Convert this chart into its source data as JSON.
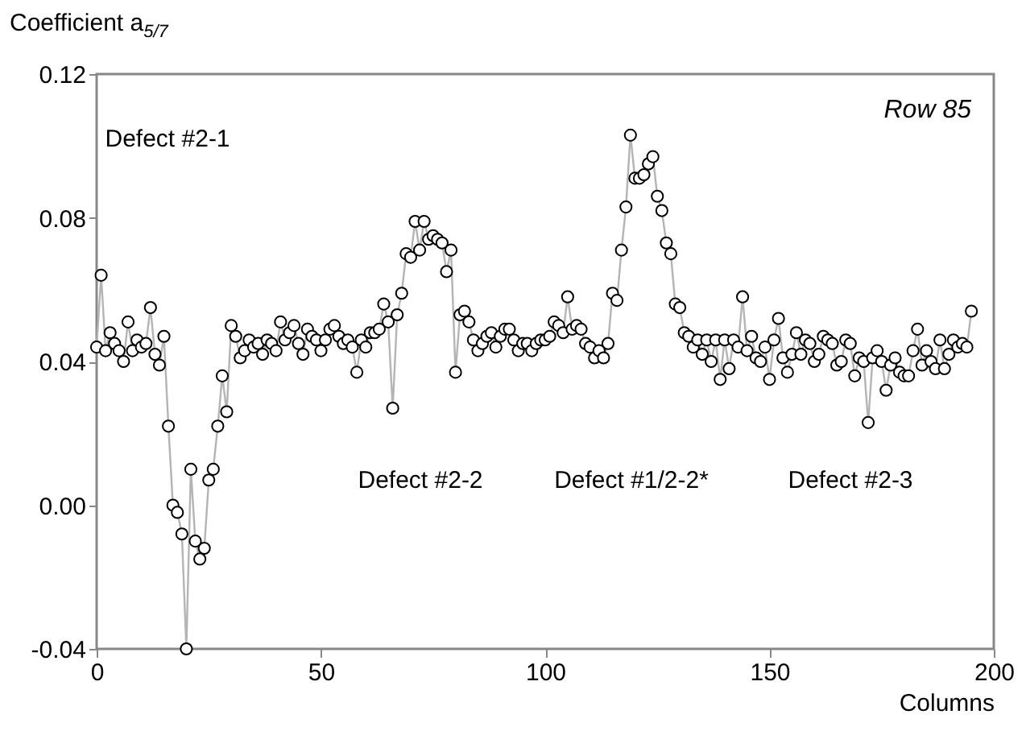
{
  "chart_data": {
    "type": "line",
    "ylabel": "Coefficient  a$_{5/7}$",
    "xlabel": "Columns",
    "x": [
      0,
      1,
      2,
      3,
      4,
      5,
      6,
      7,
      8,
      9,
      10,
      11,
      12,
      13,
      14,
      15,
      16,
      17,
      18,
      19,
      20,
      21,
      22,
      23,
      24,
      25,
      26,
      27,
      28,
      29,
      30,
      31,
      32,
      33,
      34,
      35,
      36,
      37,
      38,
      39,
      40,
      41,
      42,
      43,
      44,
      45,
      46,
      47,
      48,
      49,
      50,
      51,
      52,
      53,
      54,
      55,
      56,
      57,
      58,
      59,
      60,
      61,
      62,
      63,
      64,
      65,
      66,
      67,
      68,
      69,
      70,
      71,
      72,
      73,
      74,
      75,
      76,
      77,
      78,
      79,
      80,
      81,
      82,
      83,
      84,
      85,
      86,
      87,
      88,
      89,
      90,
      91,
      92,
      93,
      94,
      95,
      96,
      97,
      98,
      99,
      100,
      101,
      102,
      103,
      104,
      105,
      106,
      107,
      108,
      109,
      110,
      111,
      112,
      113,
      114,
      115,
      116,
      117,
      118,
      119,
      120,
      121,
      122,
      123,
      124,
      125,
      126,
      127,
      128,
      129,
      130,
      131,
      132,
      133,
      134,
      135,
      136,
      137,
      138,
      139,
      140,
      141,
      142,
      143,
      144,
      145,
      146,
      147,
      148,
      149,
      150,
      151,
      152,
      153,
      154,
      155,
      156,
      157,
      158,
      159,
      160,
      161,
      162,
      163,
      164,
      165,
      166,
      167,
      168,
      169,
      170,
      171,
      172,
      173,
      174,
      175,
      176,
      177,
      178,
      179,
      180,
      181,
      182,
      183,
      184,
      185,
      186,
      187,
      188,
      189,
      190,
      191,
      192,
      193,
      194,
      195
    ],
    "series": [
      {
        "color": "#b4b4b4",
        "values": [
          0.044,
          0.064,
          0.043,
          0.048,
          0.045,
          0.043,
          0.04,
          0.051,
          0.043,
          0.046,
          0.044,
          0.045,
          0.055,
          0.042,
          0.039,
          0.047,
          0.022,
          0.0,
          -0.002,
          -0.008,
          -0.04,
          0.01,
          -0.01,
          -0.015,
          -0.012,
          0.007,
          0.01,
          0.022,
          0.036,
          0.026,
          0.05,
          0.047,
          0.041,
          0.043,
          0.046,
          0.044,
          0.045,
          0.042,
          0.046,
          0.045,
          0.043,
          0.051,
          0.046,
          0.048,
          0.05,
          0.045,
          0.042,
          0.049,
          0.047,
          0.046,
          0.043,
          0.046,
          0.049,
          0.05,
          0.047,
          0.045,
          0.046,
          0.044,
          0.037,
          0.046,
          0.044,
          0.048,
          0.048,
          0.049,
          0.056,
          0.051,
          0.027,
          0.053,
          0.059,
          0.07,
          0.069,
          0.079,
          0.071,
          0.079,
          0.074,
          0.075,
          0.074,
          0.073,
          0.065,
          0.071,
          0.037,
          0.053,
          0.054,
          0.051,
          0.046,
          0.043,
          0.045,
          0.047,
          0.048,
          0.044,
          0.047,
          0.049,
          0.049,
          0.046,
          0.043,
          0.045,
          0.045,
          0.043,
          0.045,
          0.046,
          0.046,
          0.047,
          0.051,
          0.05,
          0.048,
          0.058,
          0.049,
          0.05,
          0.049,
          0.045,
          0.044,
          0.041,
          0.043,
          0.041,
          0.045,
          0.059,
          0.057,
          0.071,
          0.083,
          0.103,
          0.091,
          0.091,
          0.092,
          0.095,
          0.097,
          0.086,
          0.082,
          0.073,
          0.07,
          0.056,
          0.055,
          0.048,
          0.047,
          0.044,
          0.046,
          0.042,
          0.046,
          0.04,
          0.046,
          0.035,
          0.046,
          0.038,
          0.046,
          0.044,
          0.058,
          0.043,
          0.047,
          0.041,
          0.04,
          0.044,
          0.035,
          0.046,
          0.052,
          0.041,
          0.037,
          0.042,
          0.048,
          0.042,
          0.046,
          0.045,
          0.04,
          0.042,
          0.047,
          0.046,
          0.045,
          0.039,
          0.04,
          0.046,
          0.045,
          0.036,
          0.041,
          0.04,
          0.023,
          0.041,
          0.043,
          0.04,
          0.032,
          0.039,
          0.041,
          0.037,
          0.036,
          0.036,
          0.043,
          0.049,
          0.039,
          0.043,
          0.04,
          0.038,
          0.046,
          0.038,
          0.042,
          0.046,
          0.044,
          0.045,
          0.044,
          0.054
        ]
      }
    ],
    "marker": "circle",
    "xlim": [
      0,
      200
    ],
    "xticks": [
      0,
      50,
      100,
      150,
      200
    ],
    "ylim": [
      -0.04,
      0.12
    ],
    "yticks": [
      -0.04,
      {
        "value": 0,
        "label": "0.00"
      },
      0.04,
      0.08,
      0.12
    ],
    "annotations": [
      "Defect #2-1",
      "Defect #2-2",
      "Defect #1/2-2*",
      "Defect #2-3",
      "Row  85"
    ]
  }
}
